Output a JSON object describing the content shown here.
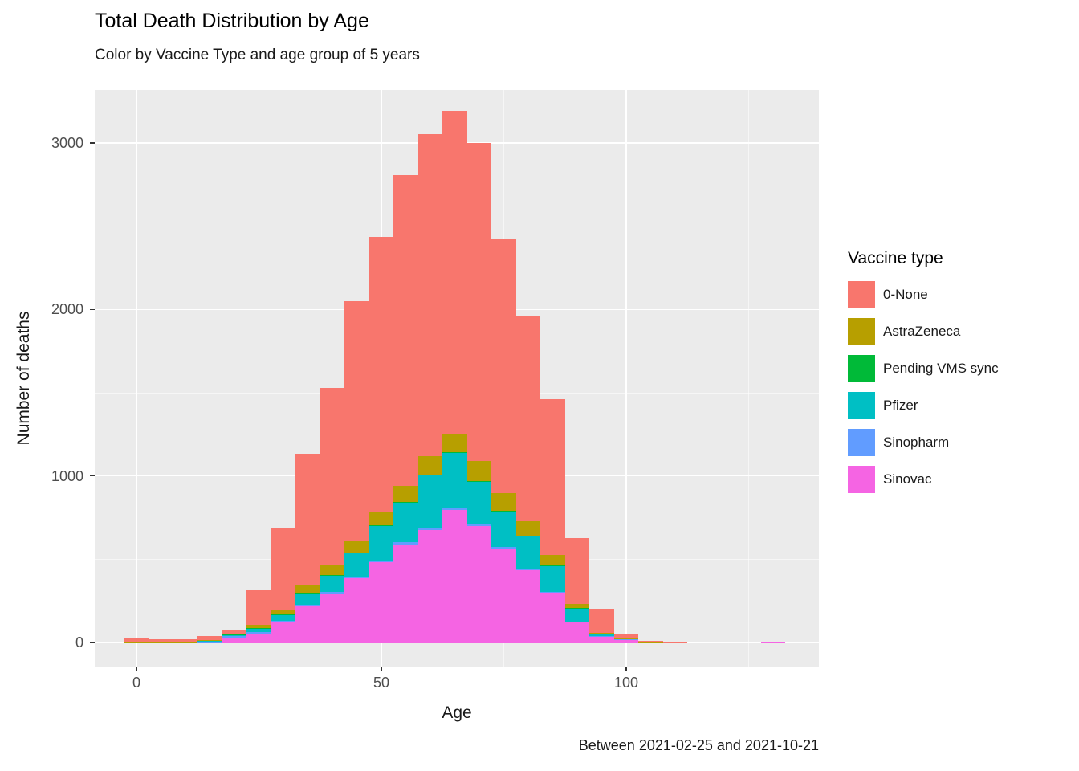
{
  "title": "Total Death Distribution by Age",
  "subtitle": "Color by Vaccine Type and age group of 5 years",
  "caption": "Between 2021-02-25 and 2021-10-21",
  "axes": {
    "x_label": "Age",
    "y_label": "Number of deaths",
    "x_ticks": [
      0,
      50,
      100
    ],
    "x_minor_gridlines": [
      25,
      75,
      125
    ],
    "y_ticks": [
      0,
      1000,
      2000,
      3000
    ],
    "y_minor_gridlines": [
      500,
      1500,
      2500
    ]
  },
  "legend": {
    "title": "Vaccine type",
    "items": [
      {
        "label": "0-None",
        "color": "#F8766D"
      },
      {
        "label": "AstraZeneca",
        "color": "#B79F00"
      },
      {
        "label": "Pending VMS sync",
        "color": "#00BA38"
      },
      {
        "label": "Pfizer",
        "color": "#00BFC4"
      },
      {
        "label": "Sinopharm",
        "color": "#619CFF"
      },
      {
        "label": "Sinovac",
        "color": "#F564E3"
      }
    ]
  },
  "chart_data": {
    "type": "bar",
    "stacked": true,
    "bin_width": 5,
    "title": "Total Death Distribution by Age",
    "xlabel": "Age",
    "ylabel": "Number of deaths",
    "xlim": [
      -8.5,
      139
    ],
    "ylim": [
      0,
      3300
    ],
    "x_bin_centers": [
      0,
      5,
      10,
      15,
      20,
      25,
      30,
      35,
      40,
      45,
      50,
      55,
      60,
      65,
      70,
      75,
      80,
      85,
      90,
      95,
      100,
      105,
      110,
      130
    ],
    "stack_order_bottom_to_top": [
      "Sinovac",
      "Sinopharm",
      "Pfizer",
      "Pending VMS sync",
      "AstraZeneca",
      "0-None"
    ],
    "series": [
      {
        "name": "Sinovac",
        "color": "#F564E3",
        "values": [
          3,
          2,
          2,
          5,
          25,
          48,
          120,
          215,
          290,
          385,
          480,
          590,
          675,
          795,
          700,
          565,
          435,
          300,
          120,
          35,
          15,
          4,
          2,
          6
        ]
      },
      {
        "name": "Sinopharm",
        "color": "#619CFF",
        "values": [
          1,
          0,
          0,
          2,
          12,
          15,
          10,
          10,
          12,
          12,
          12,
          12,
          15,
          15,
          12,
          10,
          8,
          6,
          4,
          3,
          2,
          0,
          0,
          0
        ]
      },
      {
        "name": "Pfizer",
        "color": "#00BFC4",
        "values": [
          1,
          1,
          1,
          3,
          8,
          25,
          35,
          70,
          100,
          140,
          210,
          240,
          315,
          330,
          255,
          215,
          195,
          155,
          80,
          12,
          5,
          1,
          0,
          0
        ]
      },
      {
        "name": "Pending VMS sync",
        "color": "#00BA38",
        "values": [
          0,
          0,
          0,
          0,
          1,
          1,
          2,
          2,
          3,
          3,
          3,
          4,
          4,
          5,
          4,
          3,
          3,
          2,
          1,
          1,
          0,
          0,
          0,
          0
        ]
      },
      {
        "name": "AstraZeneca",
        "color": "#B79F00",
        "values": [
          1,
          1,
          1,
          3,
          6,
          15,
          28,
          45,
          60,
          70,
          80,
          95,
          110,
          110,
          120,
          105,
          85,
          62,
          28,
          8,
          3,
          1,
          0,
          0
        ]
      },
      {
        "name": "0-None",
        "color": "#F8766D",
        "values": [
          18,
          15,
          15,
          26,
          20,
          210,
          490,
          792,
          1064,
          1440,
          1651,
          1867,
          1934,
          1938,
          1909,
          1524,
          1237,
          937,
          394,
          144,
          28,
          2,
          3,
          0
        ]
      }
    ],
    "bin_totals": [
      24,
      19,
      19,
      39,
      72,
      314,
      685,
      1134,
      1529,
      2050,
      2436,
      2808,
      3053,
      3193,
      3000,
      2422,
      1963,
      1462,
      627,
      203,
      53,
      8,
      5,
      6
    ]
  }
}
